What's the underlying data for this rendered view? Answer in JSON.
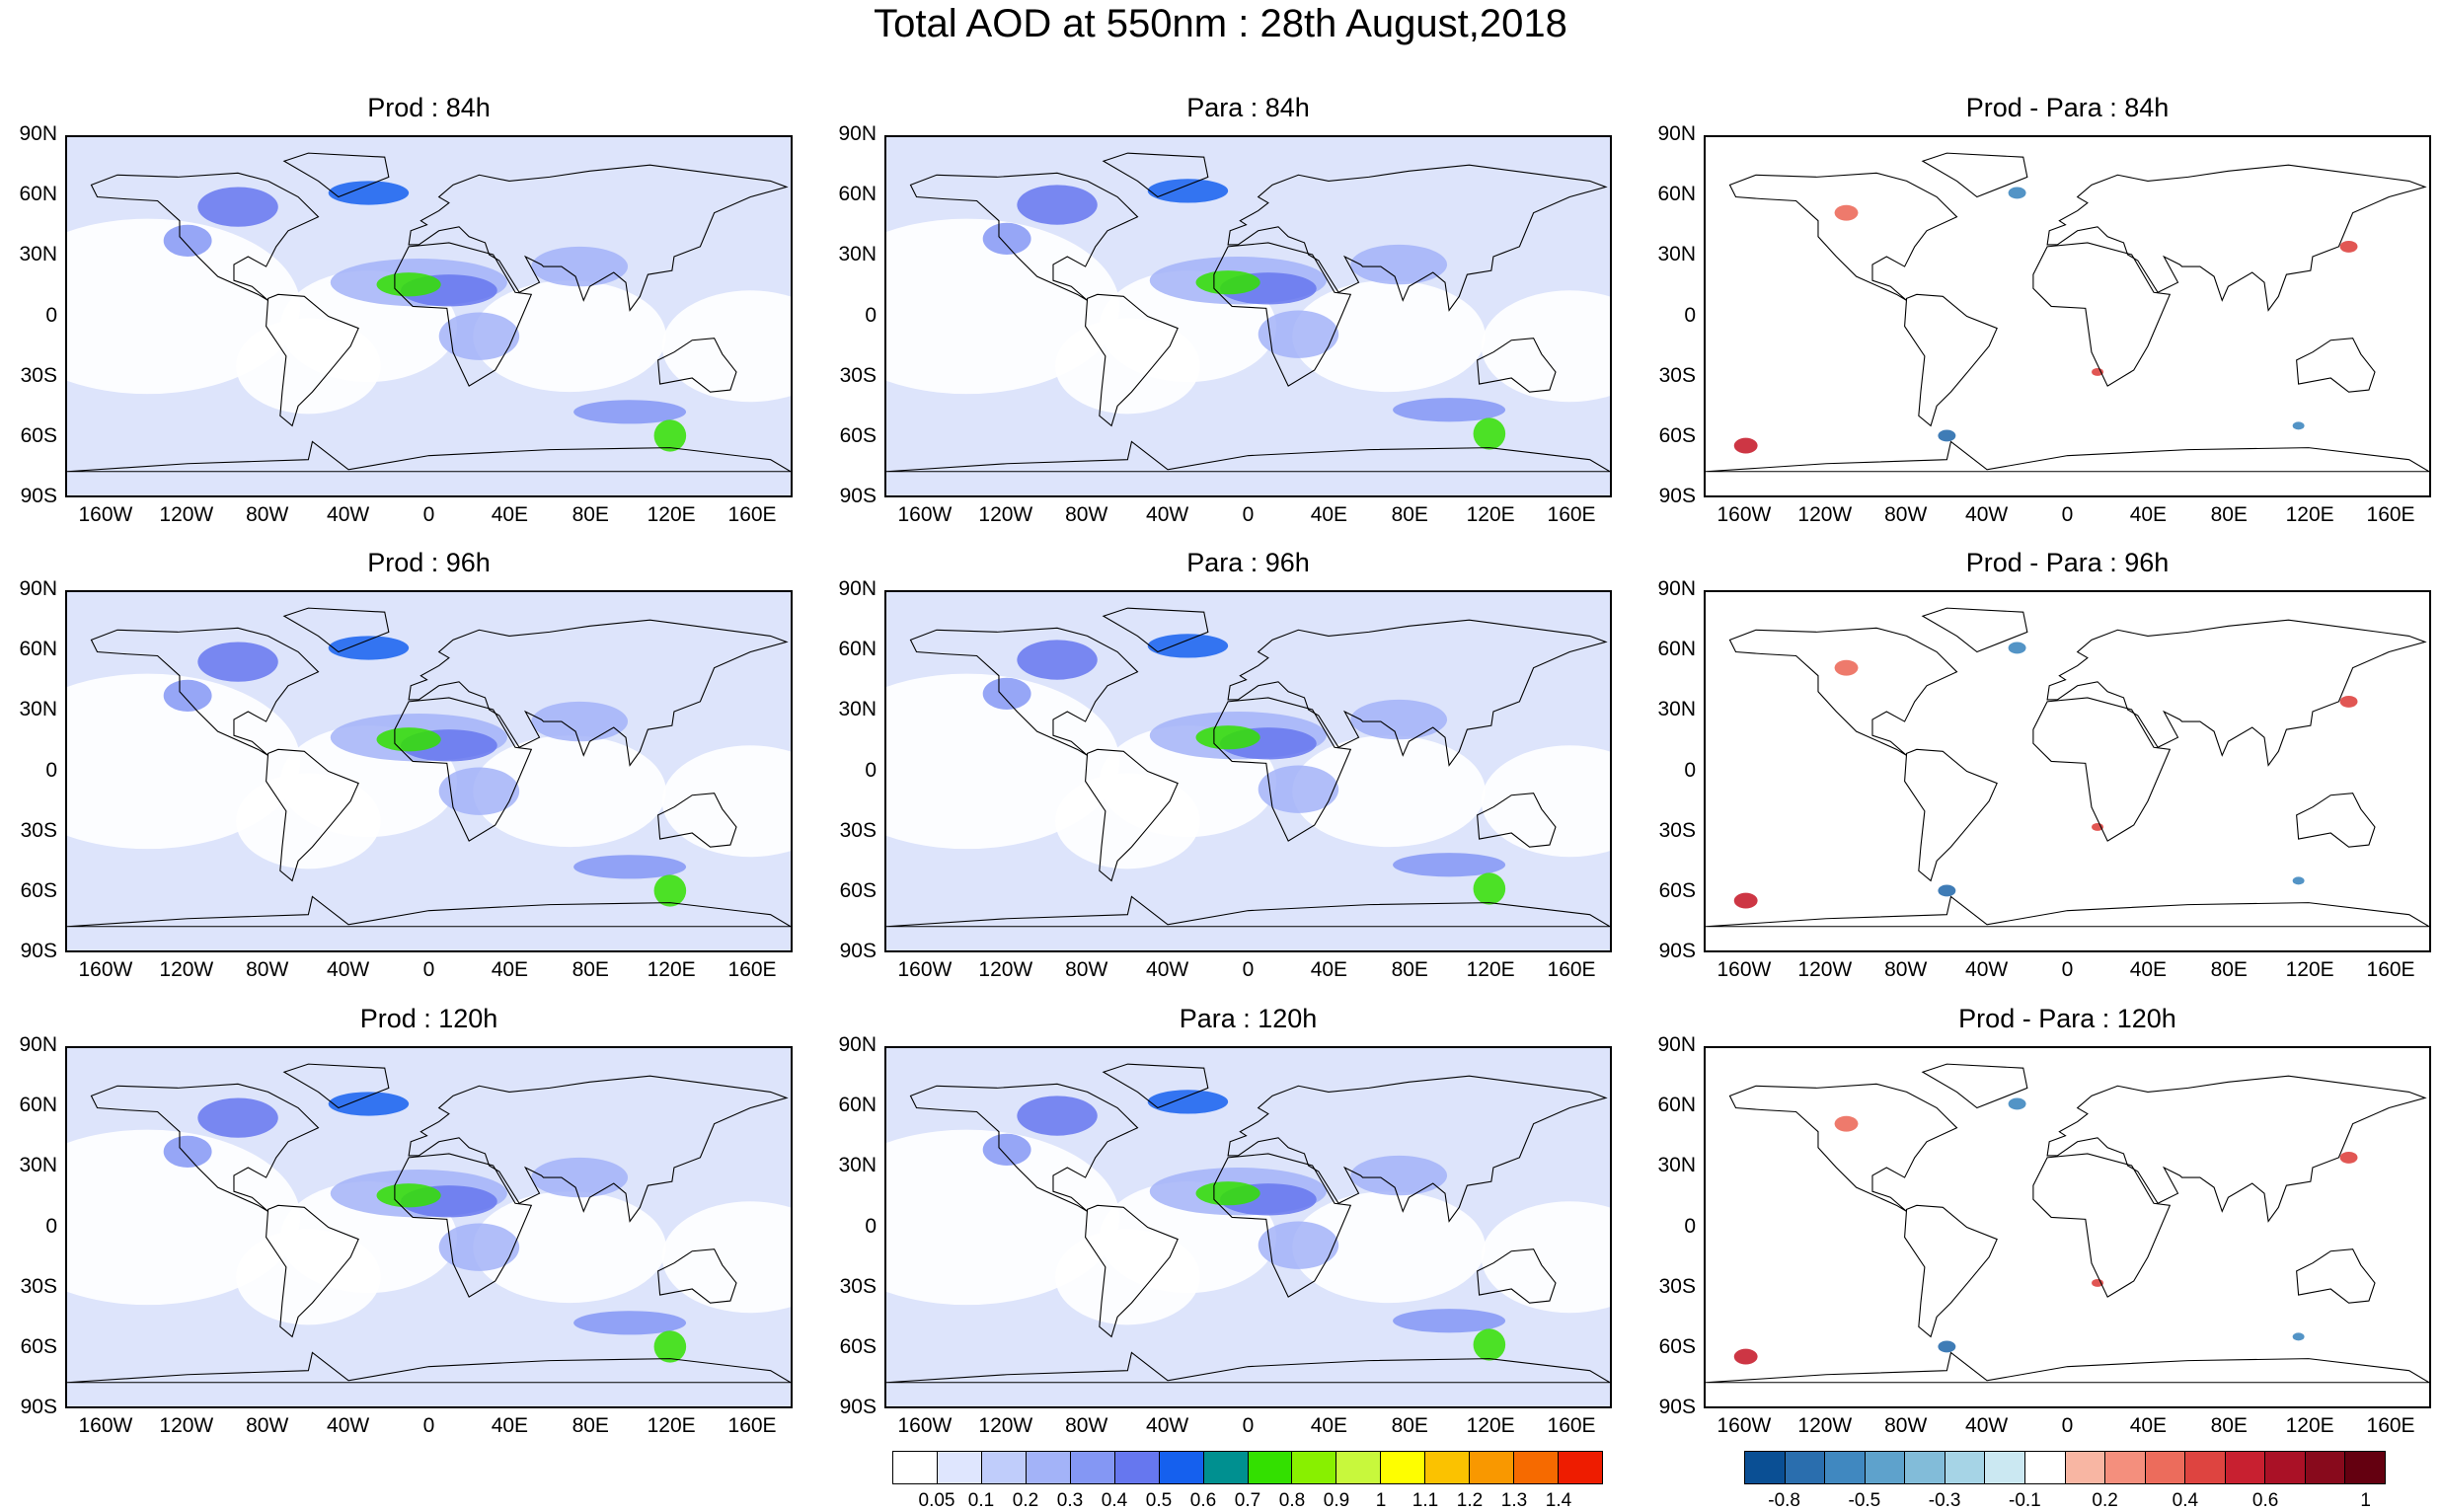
{
  "title": "Total AOD at 550nm : 28th August,2018",
  "panels": [
    {
      "title": "Prod : 84h",
      "kind": "aod"
    },
    {
      "title": "Para : 84h",
      "kind": "aod"
    },
    {
      "title": "Prod - Para : 84h",
      "kind": "diff"
    },
    {
      "title": "Prod : 96h",
      "kind": "aod"
    },
    {
      "title": "Para : 96h",
      "kind": "aod"
    },
    {
      "title": "Prod - Para : 96h",
      "kind": "diff"
    },
    {
      "title": "Prod : 120h",
      "kind": "aod"
    },
    {
      "title": "Para : 120h",
      "kind": "aod"
    },
    {
      "title": "Prod - Para : 120h",
      "kind": "diff"
    }
  ],
  "lat_labels": [
    "90N",
    "60N",
    "30N",
    "0",
    "30S",
    "60S",
    "90S"
  ],
  "lon_labels": [
    "160W",
    "120W",
    "80W",
    "40W",
    "0",
    "40E",
    "80E",
    "120E",
    "160E"
  ],
  "aod_colorbar": {
    "labels": [
      "0.05",
      "0.1",
      "0.2",
      "0.3",
      "0.4",
      "0.5",
      "0.6",
      "0.7",
      "0.8",
      "0.9",
      "1",
      "1.1",
      "1.2",
      "1.3",
      "1.4"
    ],
    "colors": [
      "#ffffff",
      "#dfe6fe",
      "#c0cdfb",
      "#a3b3f8",
      "#8497f4",
      "#6677ef",
      "#1560ee",
      "#009090",
      "#33e000",
      "#88f000",
      "#c8f83c",
      "#fefe00",
      "#fbc200",
      "#f99800",
      "#f66a00",
      "#ee1c00"
    ]
  },
  "diff_colorbar": {
    "labels": [
      "-0.8",
      "-0.5",
      "-0.3",
      "-0.1",
      "0.2",
      "0.4",
      "0.6",
      "1"
    ],
    "colors": [
      "#0a4f94",
      "#2a6eae",
      "#4088c0",
      "#5ea2cc",
      "#82bcd9",
      "#a6d4e6",
      "#cbe8f2",
      "#ffffff",
      "#f8b6a3",
      "#f48f7d",
      "#ec6c5c",
      "#de4440",
      "#c82030",
      "#aa1126",
      "#880a1c",
      "#640010"
    ]
  },
  "background_colors": {
    "aod_base": "#dde4fb",
    "aod_clear": "#ffffff",
    "diff_base": "#ffffff",
    "coast": "#000000"
  }
}
